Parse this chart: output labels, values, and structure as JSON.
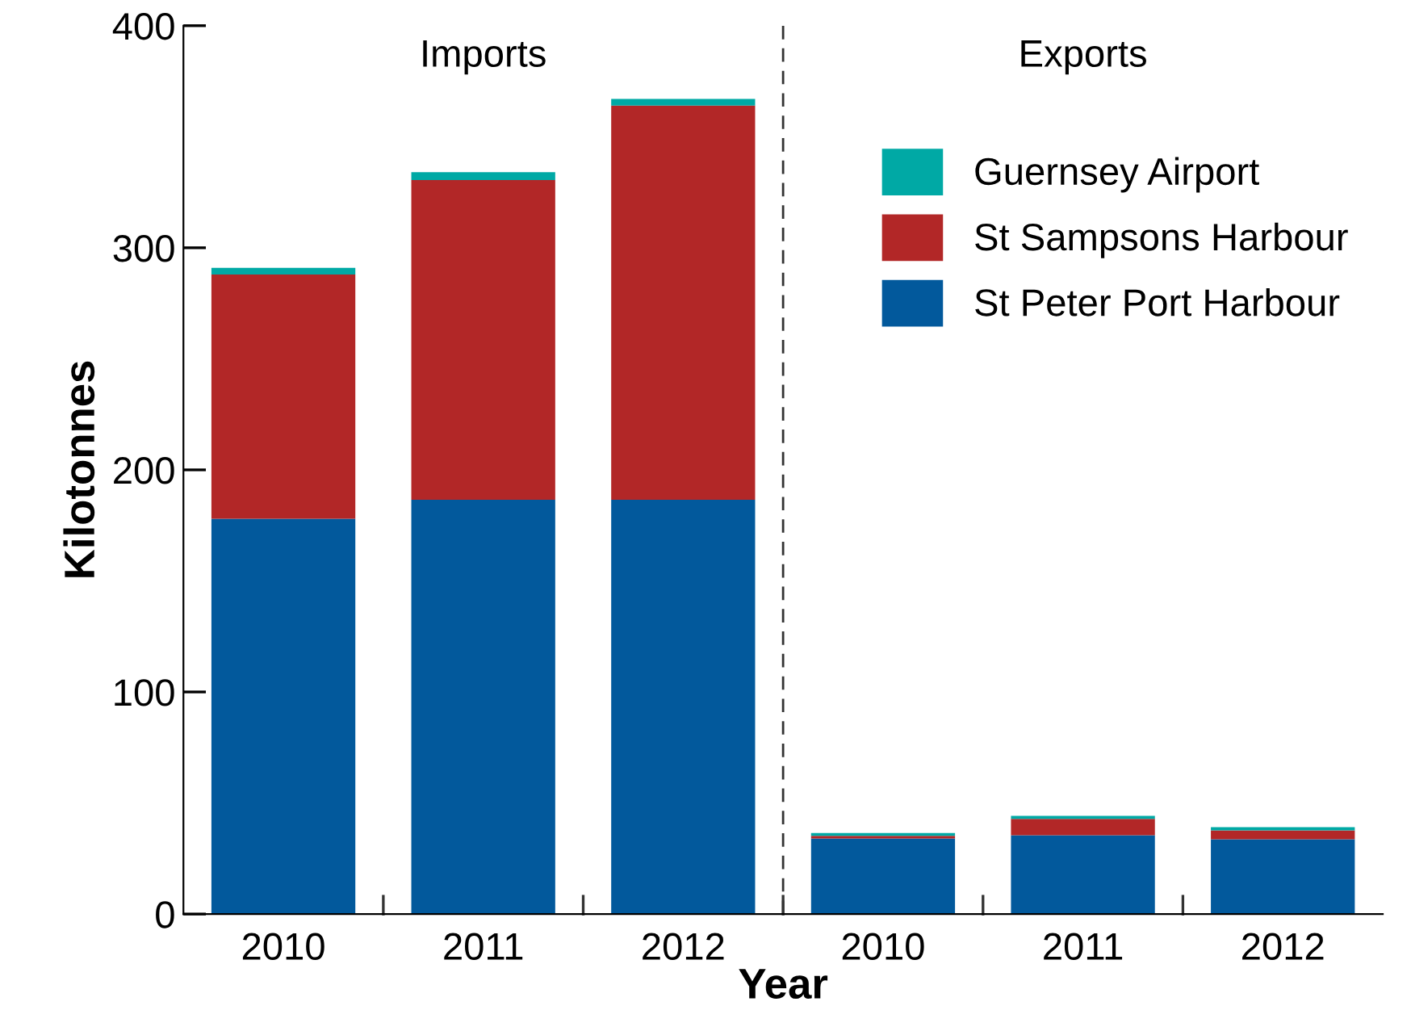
{
  "chart_data": {
    "type": "bar",
    "stacked": true,
    "xlabel": "Year",
    "ylabel": "Kilotonnes",
    "categories": [
      "2010",
      "2011",
      "2012",
      "2010",
      "2011",
      "2012"
    ],
    "series": [
      {
        "name": "St Peter Port Harbour",
        "color": "#02599c",
        "values": [
          178,
          186.5,
          186.5,
          34,
          35.5,
          33.7
        ]
      },
      {
        "name": "St Sampsons Harbour",
        "color": "#b22727",
        "values": [
          110,
          144,
          177.5,
          1.2,
          7.3,
          4
        ]
      },
      {
        "name": "Guernsey Airport",
        "color": "#00a9a5",
        "values": [
          3,
          3.5,
          3,
          1.3,
          1.4,
          1.4
        ]
      }
    ],
    "annotations": [
      "Imports",
      "Exports"
    ],
    "ylim": [
      0,
      400
    ],
    "yticks": [
      0,
      100,
      200,
      300,
      400
    ],
    "grid": false,
    "legend": "top right"
  }
}
